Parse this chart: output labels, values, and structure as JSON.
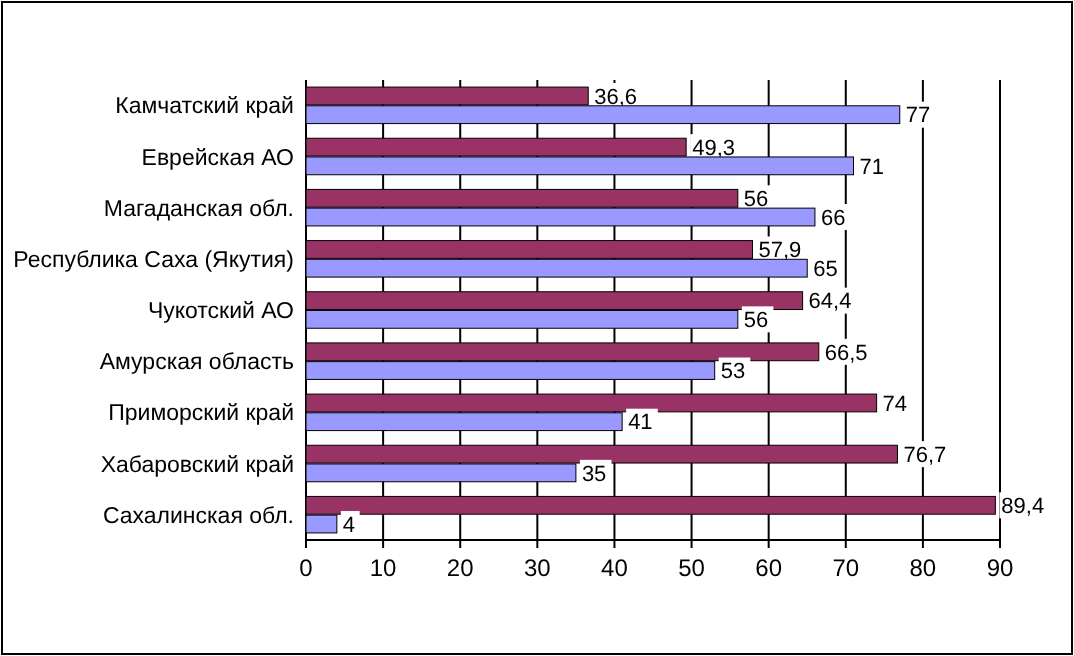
{
  "chart_data": {
    "type": "bar",
    "orientation": "horizontal",
    "categories": [
      "Камчатский край",
      "Еврейская АО",
      "Магаданская обл.",
      "Республика Саха (Якутия)",
      "Чукотский АО",
      "Амурская область",
      "Приморский край",
      "Хабаровский край",
      "Сахалинская обл."
    ],
    "series": [
      {
        "color": "#993366",
        "values": [
          36.6,
          49.3,
          56,
          57.9,
          64.4,
          66.5,
          74,
          76.7,
          89.4
        ],
        "value_labels": [
          "36,6",
          "49,3",
          "56",
          "57,9",
          "64,4",
          "66,5",
          "74",
          "76,7",
          "89,4"
        ]
      },
      {
        "color": "#9999ff",
        "values": [
          77,
          71,
          66,
          65,
          56,
          53,
          41,
          35,
          4
        ],
        "value_labels": [
          "77",
          "71",
          "66",
          "65",
          "56",
          "53",
          "41",
          "35",
          "4"
        ]
      }
    ],
    "xlim": [
      0,
      90
    ],
    "xticks": [
      0,
      10,
      20,
      30,
      40,
      50,
      60,
      70,
      80,
      90
    ],
    "grid": "x"
  }
}
